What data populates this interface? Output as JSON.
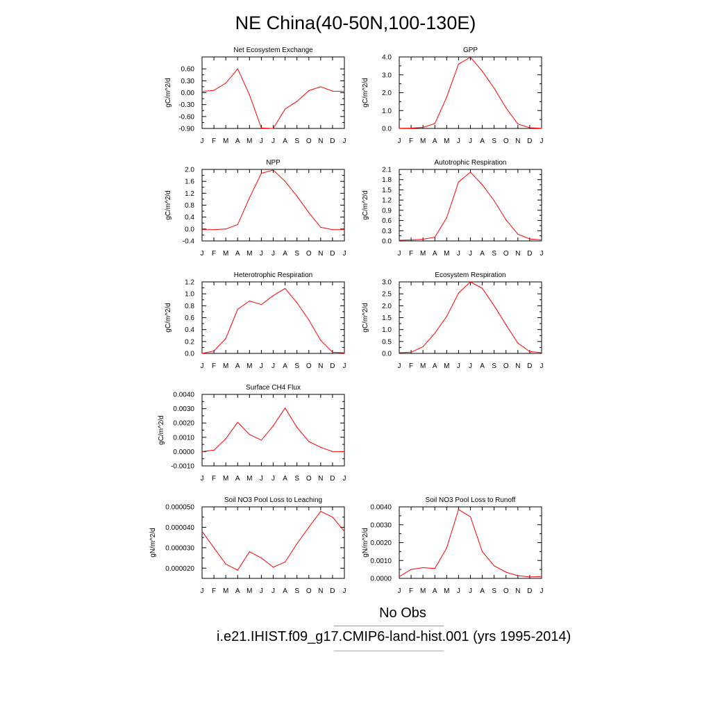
{
  "title": "NE China(40-50N,100-130E)",
  "months": [
    "J",
    "F",
    "M",
    "A",
    "M",
    "J",
    "J",
    "A",
    "S",
    "O",
    "N",
    "D",
    "J"
  ],
  "colors": {
    "model": "#ff0000",
    "obs_line": "#8c8cf0",
    "model_line": "#f08c8c",
    "axis": "#000000"
  },
  "legend": {
    "obs_label": "No Obs",
    "model_label": "i.e21.IHIST.f09_g17.CMIP6-land-hist.001 (yrs 1995-2014)"
  },
  "chart_data": [
    {
      "type": "line",
      "title": "Net Ecosystem Exchange",
      "ylabel": "gC/m^2/d",
      "xlabel": "",
      "categories": [
        "J",
        "F",
        "M",
        "A",
        "M",
        "J",
        "J",
        "A",
        "S",
        "O",
        "N",
        "D",
        "J"
      ],
      "ylim": [
        -0.9,
        0.9
      ],
      "yticks": [
        -0.9,
        -0.6,
        -0.3,
        0.0,
        0.3,
        0.6
      ],
      "ytick_labels": [
        "-0.90",
        "-0.60",
        "-0.30",
        "0.00",
        "0.30",
        "0.60"
      ],
      "series": [
        {
          "values": [
            0.03,
            0.06,
            0.24,
            0.6,
            -0.05,
            -0.89,
            -0.9,
            -0.41,
            -0.22,
            0.05,
            0.15,
            0.04,
            0.03
          ]
        }
      ]
    },
    {
      "type": "line",
      "title": "GPP",
      "ylabel": "gC/m^2/d",
      "xlabel": "",
      "categories": [
        "J",
        "F",
        "M",
        "A",
        "M",
        "J",
        "J",
        "A",
        "S",
        "O",
        "N",
        "D",
        "J"
      ],
      "ylim": [
        0,
        4.0
      ],
      "yticks": [
        0,
        1,
        2,
        3,
        4
      ],
      "ytick_labels": [
        "0.0",
        "1.0",
        "2.0",
        "3.0",
        "4.0"
      ],
      "series": [
        {
          "values": [
            0.01,
            0.02,
            0.06,
            0.27,
            1.75,
            3.6,
            3.98,
            3.2,
            2.25,
            1.15,
            0.25,
            0.04,
            0.01
          ]
        }
      ]
    },
    {
      "type": "line",
      "title": "NPP",
      "ylabel": "gC/m^2/d",
      "xlabel": "",
      "categories": [
        "J",
        "F",
        "M",
        "A",
        "M",
        "J",
        "J",
        "A",
        "S",
        "O",
        "N",
        "D",
        "J"
      ],
      "ylim": [
        -0.4,
        2.0
      ],
      "yticks": [
        -0.4,
        0.0,
        0.4,
        0.8,
        1.2,
        1.6,
        2.0
      ],
      "ytick_labels": [
        "-0.4",
        "0.0",
        "0.4",
        "0.8",
        "1.2",
        "1.6",
        "2.0"
      ],
      "series": [
        {
          "values": [
            -0.02,
            -0.02,
            0.0,
            0.15,
            1.05,
            1.87,
            1.98,
            1.6,
            1.1,
            0.55,
            0.06,
            -0.02,
            -0.02
          ]
        }
      ]
    },
    {
      "type": "line",
      "title": "Autotrophic Respiration",
      "ylabel": "gC/m^2/d",
      "xlabel": "",
      "categories": [
        "J",
        "F",
        "M",
        "A",
        "M",
        "J",
        "J",
        "A",
        "S",
        "O",
        "N",
        "D",
        "J"
      ],
      "ylim": [
        0,
        2.1
      ],
      "yticks": [
        0,
        0.3,
        0.6,
        0.9,
        1.2,
        1.5,
        1.8,
        2.1
      ],
      "ytick_labels": [
        "0.0",
        "0.3",
        "0.6",
        "0.9",
        "1.2",
        "1.5",
        "1.8",
        "2.1"
      ],
      "series": [
        {
          "values": [
            0.02,
            0.03,
            0.05,
            0.11,
            0.68,
            1.73,
            2.02,
            1.65,
            1.18,
            0.62,
            0.2,
            0.06,
            0.03
          ]
        }
      ]
    },
    {
      "type": "line",
      "title": "Heterotrophic Respiration",
      "ylabel": "gC/m^2/d",
      "xlabel": "",
      "categories": [
        "J",
        "F",
        "M",
        "A",
        "M",
        "J",
        "J",
        "A",
        "S",
        "O",
        "N",
        "D",
        "J"
      ],
      "ylim": [
        0,
        1.2
      ],
      "yticks": [
        0,
        0.2,
        0.4,
        0.6,
        0.8,
        1.0,
        1.2
      ],
      "ytick_labels": [
        "0.0",
        "0.2",
        "0.4",
        "0.6",
        "0.8",
        "1.0",
        "1.2"
      ],
      "series": [
        {
          "values": [
            0.0,
            0.04,
            0.25,
            0.74,
            0.88,
            0.82,
            0.97,
            1.09,
            0.85,
            0.56,
            0.22,
            0.02,
            0.01
          ]
        }
      ]
    },
    {
      "type": "line",
      "title": "Ecosystem Respiration",
      "ylabel": "gC/m^2/d",
      "xlabel": "",
      "categories": [
        "J",
        "F",
        "M",
        "A",
        "M",
        "J",
        "J",
        "A",
        "S",
        "O",
        "N",
        "D",
        "J"
      ],
      "ylim": [
        0,
        3.0
      ],
      "yticks": [
        0,
        0.5,
        1.0,
        1.5,
        2.0,
        2.5,
        3.0
      ],
      "ytick_labels": [
        "0.0",
        "0.5",
        "1.0",
        "1.5",
        "2.0",
        "2.5",
        "3.0"
      ],
      "series": [
        {
          "values": [
            0.03,
            0.05,
            0.28,
            0.85,
            1.55,
            2.53,
            3.0,
            2.73,
            2.0,
            1.2,
            0.43,
            0.08,
            0.03
          ]
        }
      ]
    },
    {
      "type": "line",
      "title": "Surface CH4 Flux",
      "ylabel": "gC/m^2/d",
      "xlabel": "",
      "categories": [
        "J",
        "F",
        "M",
        "A",
        "M",
        "J",
        "J",
        "A",
        "S",
        "O",
        "N",
        "D",
        "J"
      ],
      "ylim": [
        -0.001,
        0.004
      ],
      "yticks": [
        -0.001,
        0,
        0.001,
        0.002,
        0.003,
        0.004
      ],
      "ytick_labels": [
        "-0.0010",
        "0.0000",
        "0.0010",
        "0.0020",
        "0.0030",
        "0.0040"
      ],
      "series": [
        {
          "values": [
            0.0,
            0.0001,
            0.0009,
            0.00205,
            0.0012,
            0.0008,
            0.0018,
            0.00305,
            0.0017,
            0.0007,
            0.0003,
            0.0,
            0.0
          ]
        }
      ]
    },
    {
      "type": "line",
      "title": "Soil NO3 Pool Loss to Leaching",
      "ylabel": "gN/m^2/d",
      "xlabel": "",
      "categories": [
        "J",
        "F",
        "M",
        "A",
        "M",
        "J",
        "J",
        "A",
        "S",
        "O",
        "N",
        "D",
        "J"
      ],
      "ylim": [
        1.5e-05,
        5e-05
      ],
      "yticks": [
        2e-05,
        3e-05,
        4e-05,
        5e-05
      ],
      "ytick_labels": [
        "0.000020",
        "0.000030",
        "0.000040",
        "0.000050"
      ],
      "series": [
        {
          "values": [
            3.8e-05,
            3e-05,
            2.2e-05,
            1.9e-05,
            2.8e-05,
            2.5e-05,
            2.05e-05,
            2.3e-05,
            3.2e-05,
            4e-05,
            4.78e-05,
            4.5e-05,
            3.8e-05
          ]
        }
      ]
    },
    {
      "type": "line",
      "title": "Soil NO3 Pool Loss to Runoff",
      "ylabel": "gN/m^2/d",
      "xlabel": "",
      "categories": [
        "J",
        "F",
        "M",
        "A",
        "M",
        "J",
        "J",
        "A",
        "S",
        "O",
        "N",
        "D",
        "J"
      ],
      "ylim": [
        0,
        0.004
      ],
      "yticks": [
        0,
        0.001,
        0.002,
        0.003,
        0.004
      ],
      "ytick_labels": [
        "0.0000",
        "0.0010",
        "0.0020",
        "0.0030",
        "0.0040"
      ],
      "series": [
        {
          "values": [
            0.0001,
            0.0005,
            0.0006,
            0.00055,
            0.0017,
            0.00385,
            0.00345,
            0.0015,
            0.0007,
            0.00035,
            0.00015,
            8e-05,
            0.0001
          ]
        }
      ]
    }
  ]
}
